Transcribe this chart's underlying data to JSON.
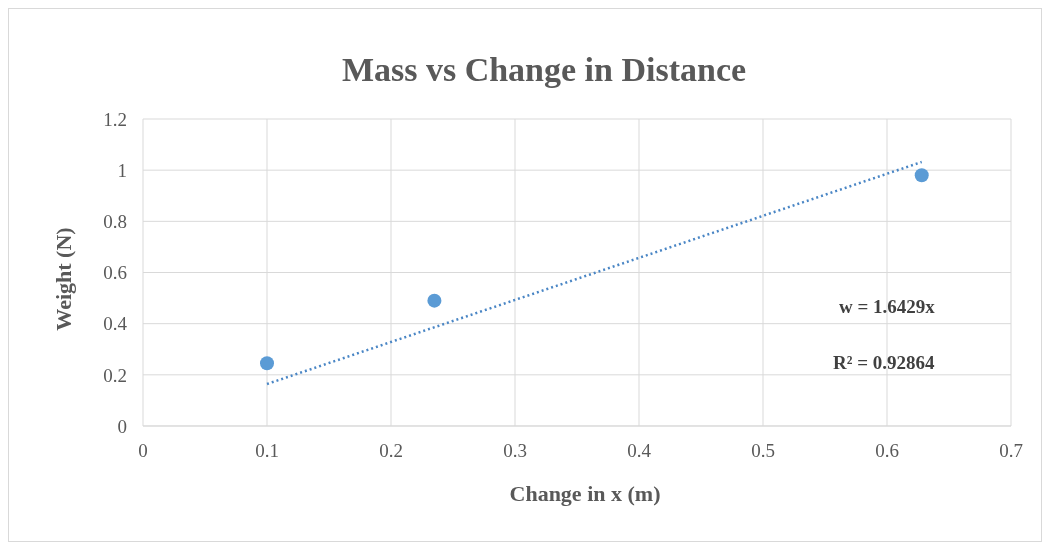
{
  "chart_data": {
    "type": "scatter",
    "title": "Mass vs Change in Distance",
    "xlabel": "Change in x (m)",
    "ylabel": "Weight (N)",
    "xlim": [
      0,
      0.7
    ],
    "xticks": [
      0,
      0.1,
      0.2,
      0.3,
      0.4,
      0.5,
      0.6,
      0.7
    ],
    "ylim": [
      0,
      1.2
    ],
    "yticks": [
      0,
      0.2,
      0.4,
      0.6,
      0.8,
      1,
      1.2
    ],
    "grid": true,
    "marker": "circle",
    "series": [
      {
        "color": "#5b9bd5",
        "x": [
          0.1,
          0.235,
          0.628
        ],
        "values": [
          0.245,
          0.49,
          0.98
        ]
      },
      {
        "type": "line",
        "color": "#4a86c5",
        "line_style": "dotted",
        "marker": "none",
        "x": [
          0.1,
          0.628
        ],
        "values": [
          0.164,
          1.032
        ]
      }
    ],
    "annotations": [
      "w = 1.6429x",
      "R² = 0.92864"
    ]
  }
}
